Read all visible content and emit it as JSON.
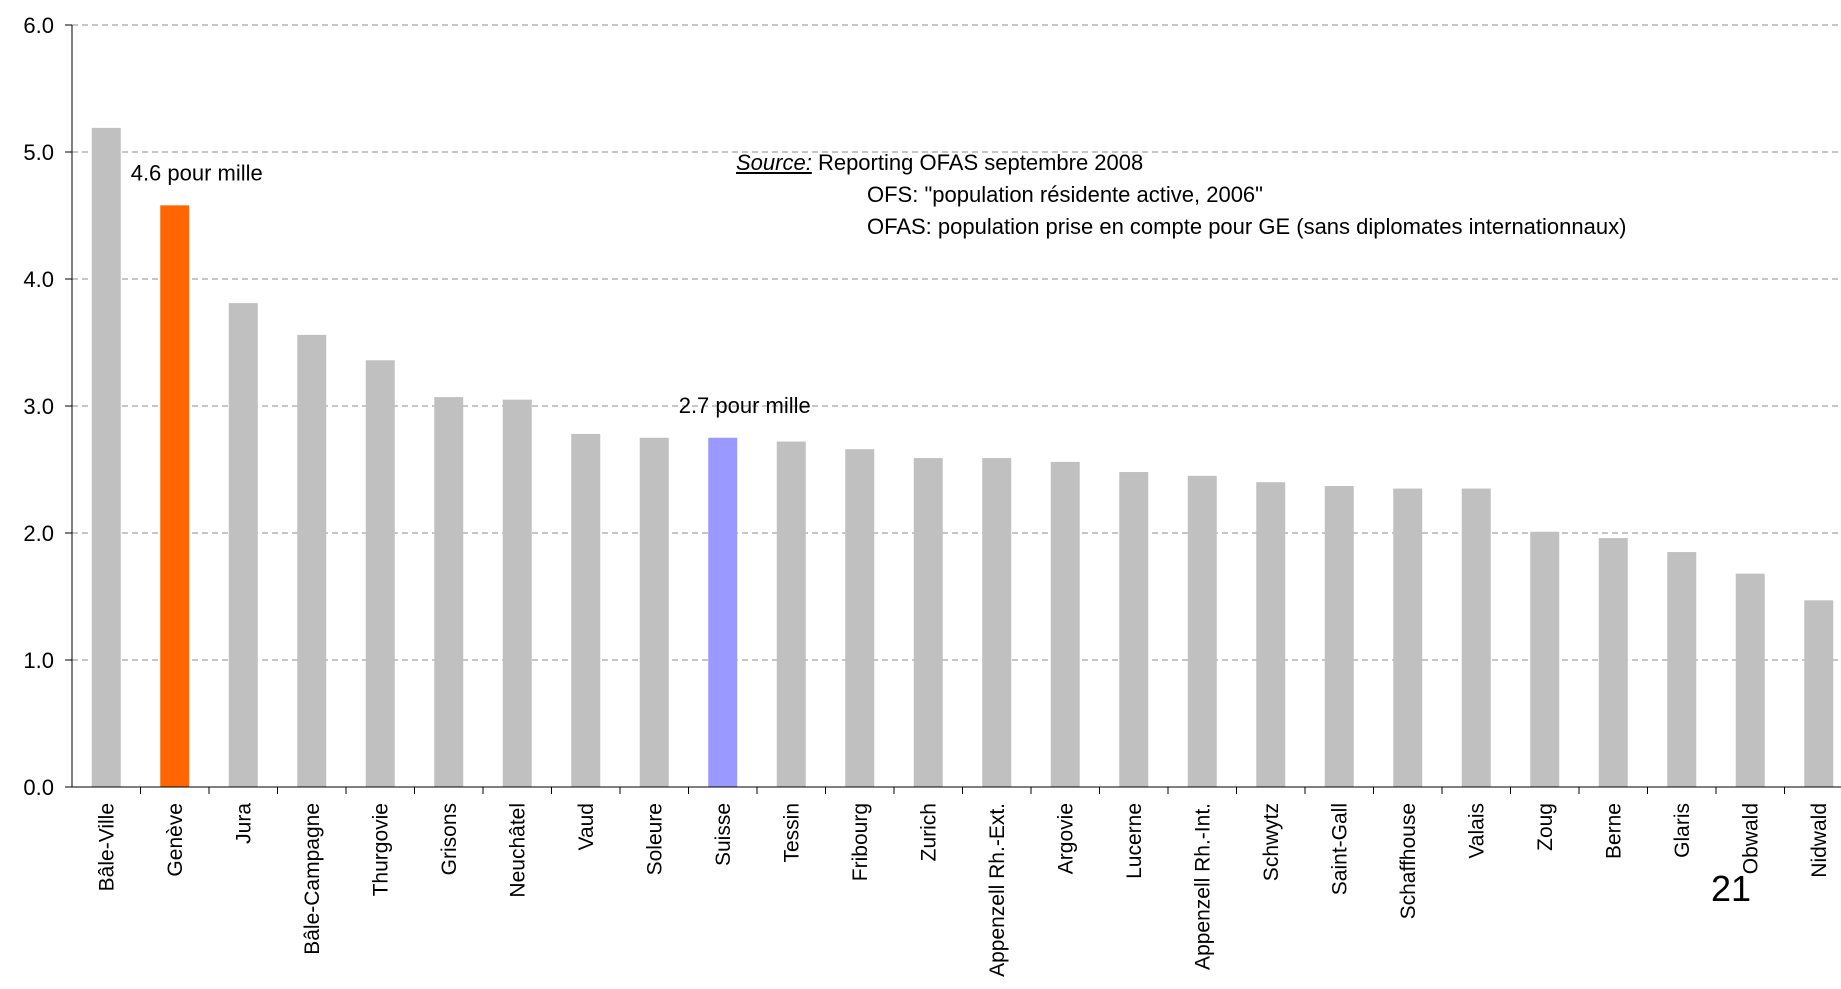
{
  "chart_data": {
    "type": "bar",
    "title": "",
    "xlabel": "",
    "ylabel": "",
    "ylim": [
      0,
      6
    ],
    "yticks": [
      "0.0",
      "1.0",
      "2.0",
      "3.0",
      "4.0",
      "5.0",
      "6.0"
    ],
    "grid": true,
    "categories": [
      "Bâle-Ville",
      "Genève",
      "Jura",
      "Bâle-Campagne",
      "Thurgovie",
      "Grisons",
      "Neuchâtel",
      "Vaud",
      "Soleure",
      "Suisse",
      "Tessin",
      "Fribourg",
      "Zurich",
      "Appenzell Rh.-Ext.",
      "Argovie",
      "Lucerne",
      "Appenzell Rh.-Int.",
      "Schwytz",
      "Saint-Gall",
      "Schaffhouse",
      "Valais",
      "Zoug",
      "Berne",
      "Glaris",
      "Obwald",
      "Nidwald"
    ],
    "values": [
      5.19,
      4.58,
      3.81,
      3.56,
      3.36,
      3.07,
      3.05,
      2.78,
      2.75,
      2.75,
      2.72,
      2.66,
      2.59,
      2.59,
      2.56,
      2.48,
      2.45,
      2.4,
      2.37,
      2.35,
      2.35,
      2.01,
      1.96,
      1.85,
      1.68,
      1.47
    ],
    "colors": {
      "default": "#c0c0c0",
      "Genève": "#ff6600",
      "Suisse": "#9999ff"
    },
    "annotations": [
      {
        "category": "Genève",
        "text": "4.6 pour mille"
      },
      {
        "category": "Suisse",
        "text": "2.7 pour mille"
      }
    ]
  },
  "source": {
    "label": "Source:",
    "lines": [
      "Reporting OFAS septembre 2008",
      "OFS:  \"population résidente active, 2006\"",
      "OFAS: population prise en compte pour GE (sans diplomates internationnaux)"
    ]
  },
  "page_number": "21"
}
